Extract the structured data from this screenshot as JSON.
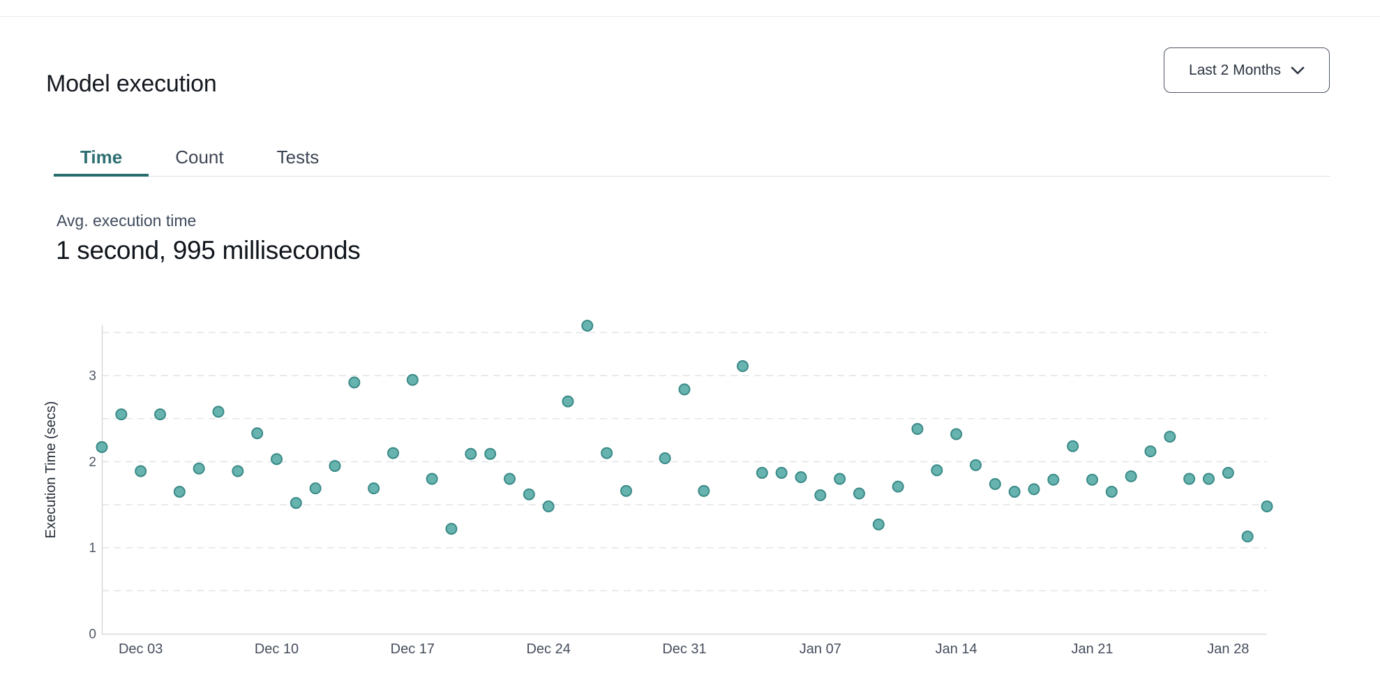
{
  "header": {
    "title": "Model execution",
    "range_button": {
      "label": "Last 2 Months",
      "icon": "chevron-down-icon"
    }
  },
  "tabs": [
    {
      "label": "Time",
      "active": true
    },
    {
      "label": "Count",
      "active": false
    },
    {
      "label": "Tests",
      "active": false
    }
  ],
  "stat": {
    "label": "Avg. execution time",
    "value": "1 second, 995 milliseconds"
  },
  "colors": {
    "accent_teal": "#2e6f73",
    "tab_underline": "#256e6c",
    "point_fill": "#67b3af",
    "point_stroke": "#3a8a87",
    "grid_line": "#e4e5e9",
    "axis_line": "#d7d9dd",
    "tick_text": "#4e5663",
    "axis_title_text": "#242b36"
  },
  "chart_data": {
    "type": "scatter",
    "title": "",
    "xlabel": "",
    "ylabel": "Execution Time (secs)",
    "ylim": [
      0,
      3.5
    ],
    "yticks": [
      0,
      1,
      2,
      3
    ],
    "grid": "dashed horizontal lines every 0.5 secs",
    "legend_position": "none",
    "x_tick_labels": [
      "Dec 03",
      "Dec 10",
      "Dec 17",
      "Dec 24",
      "Dec 31",
      "Jan 07",
      "Jan 14",
      "Jan 21",
      "Jan 28"
    ],
    "x_tick_indices": [
      2,
      9,
      16,
      23,
      30,
      37,
      44,
      51,
      58
    ],
    "x": [
      "Dec 01",
      "Dec 02",
      "Dec 03",
      "Dec 04",
      "Dec 05",
      "Dec 06",
      "Dec 07",
      "Dec 08",
      "Dec 09",
      "Dec 10",
      "Dec 11",
      "Dec 12",
      "Dec 13",
      "Dec 14",
      "Dec 15",
      "Dec 16",
      "Dec 17",
      "Dec 18",
      "Dec 19",
      "Dec 20",
      "Dec 21",
      "Dec 22",
      "Dec 23",
      "Dec 24",
      "Dec 25",
      "Dec 26",
      "Dec 27",
      "Dec 28",
      "Dec 29",
      "Dec 30",
      "Dec 31",
      "Jan 01",
      "Jan 02",
      "Jan 03",
      "Jan 04",
      "Jan 05",
      "Jan 06",
      "Jan 07",
      "Jan 08",
      "Jan 09",
      "Jan 10",
      "Jan 11",
      "Jan 12",
      "Jan 13",
      "Jan 14",
      "Jan 15",
      "Jan 16",
      "Jan 17",
      "Jan 18",
      "Jan 19",
      "Jan 20",
      "Jan 21",
      "Jan 22",
      "Jan 23",
      "Jan 24",
      "Jan 25",
      "Jan 26",
      "Jan 27",
      "Jan 28",
      "Jan 29",
      "Jan 30"
    ],
    "values": [
      2.17,
      2.55,
      1.89,
      2.55,
      1.65,
      1.92,
      2.58,
      1.89,
      2.33,
      2.03,
      1.52,
      1.69,
      1.95,
      2.92,
      1.69,
      2.1,
      2.95,
      1.8,
      1.22,
      2.09,
      2.09,
      1.8,
      1.62,
      1.48,
      2.7,
      3.58,
      2.1,
      1.66,
      null,
      2.04,
      2.84,
      1.66,
      null,
      3.11,
      1.87,
      1.87,
      1.82,
      1.61,
      1.8,
      1.63,
      1.27,
      1.71,
      2.38,
      1.9,
      2.32,
      1.96,
      1.74,
      1.65,
      1.68,
      1.79,
      2.18,
      1.79,
      1.65,
      1.83,
      2.12,
      2.29,
      1.8,
      1.8,
      1.87,
      1.13,
      1.48
    ]
  }
}
